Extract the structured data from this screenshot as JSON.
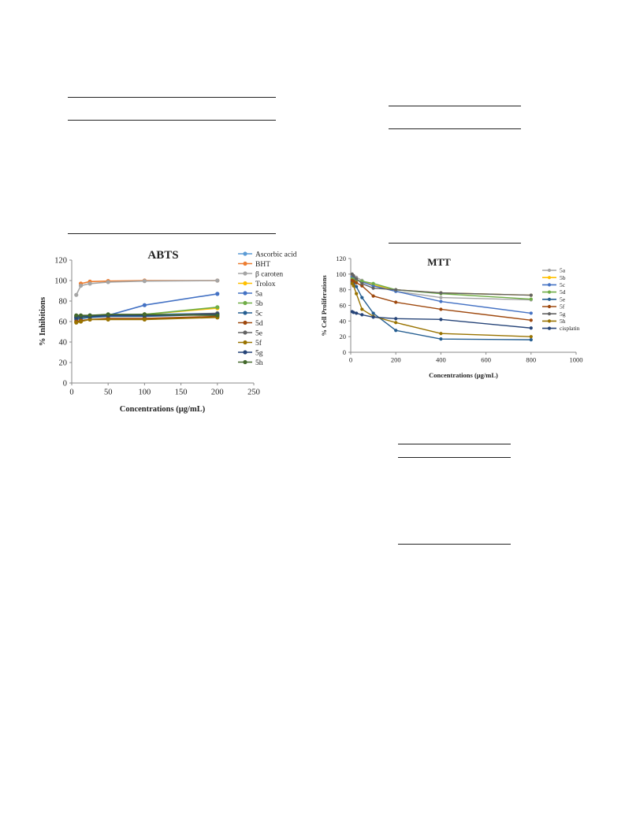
{
  "chart_data": [
    {
      "type": "line",
      "title": "ABTS",
      "xlabel": "Concentrations (µg/mL)",
      "ylabel": "% Inhibitions",
      "xlim": [
        0,
        250
      ],
      "ylim": [
        0,
        120
      ],
      "xticks": [
        0,
        50,
        100,
        150,
        200,
        250
      ],
      "yticks": [
        0,
        20,
        40,
        60,
        80,
        100,
        120
      ],
      "grid": false,
      "legend": "right",
      "x": [
        6.25,
        12.5,
        25,
        50,
        100,
        200
      ],
      "series": [
        {
          "name": "Ascorbic acid",
          "color": "#5b9bd5",
          "values": [
            65,
            65,
            66,
            66,
            67,
            68
          ]
        },
        {
          "name": "BHT",
          "color": "#ed7d31",
          "values": [
            null,
            97,
            99,
            99.5,
            100,
            100
          ]
        },
        {
          "name": "β caroten",
          "color": "#a5a5a5",
          "values": [
            86,
            95,
            97,
            98.5,
            99.5,
            100
          ]
        },
        {
          "name": "Trolox",
          "color": "#ffc000",
          "values": [
            64,
            64,
            65,
            66,
            67,
            73
          ]
        },
        {
          "name": "5a",
          "color": "#4472c4",
          "values": [
            64,
            65,
            65,
            66,
            76,
            87
          ]
        },
        {
          "name": "5b",
          "color": "#70ad47",
          "values": [
            63,
            64,
            65,
            66,
            67,
            74
          ]
        },
        {
          "name": "5c",
          "color": "#255e91",
          "values": [
            62,
            63,
            64,
            65,
            65,
            67
          ]
        },
        {
          "name": "5d",
          "color": "#9e480e",
          "values": [
            60,
            61,
            62,
            63,
            63,
            65
          ]
        },
        {
          "name": "5e",
          "color": "#636363",
          "values": [
            65,
            65,
            66,
            66,
            66,
            68
          ]
        },
        {
          "name": "5f",
          "color": "#997300",
          "values": [
            59,
            60,
            62,
            62,
            62,
            64
          ]
        },
        {
          "name": "5g",
          "color": "#264478",
          "values": [
            64,
            65,
            65,
            66,
            66,
            67
          ]
        },
        {
          "name": "5h",
          "color": "#43682b",
          "values": [
            66,
            66,
            66,
            67,
            67,
            66
          ]
        }
      ]
    },
    {
      "type": "line",
      "title": "MTT",
      "xlabel": "Concentrations (µg/mL)",
      "ylabel": "% Cell Proliferations",
      "xlim": [
        0,
        1000
      ],
      "ylim": [
        0,
        120
      ],
      "xticks": [
        0,
        200,
        400,
        600,
        800,
        1000
      ],
      "yticks": [
        0,
        20,
        40,
        60,
        80,
        100,
        120
      ],
      "grid": false,
      "legend": "right",
      "x": [
        6.25,
        12.5,
        25,
        50,
        100,
        200,
        400,
        800
      ],
      "series": [
        {
          "name": "5a",
          "color": "#a5a5a5",
          "values": [
            100,
            98,
            96,
            92,
            85,
            78,
            70,
            67
          ]
        },
        {
          "name": "5b",
          "color": "#ffc000",
          "values": [
            95,
            94,
            93,
            90,
            86,
            80,
            76,
            73
          ]
        },
        {
          "name": "5c",
          "color": "#4472c4",
          "values": [
            96,
            95,
            93,
            90,
            85,
            78,
            65,
            50
          ]
        },
        {
          "name": "5d",
          "color": "#70ad47",
          "values": [
            94,
            93,
            92,
            91,
            88,
            80,
            75,
            68
          ]
        },
        {
          "name": "5e",
          "color": "#255e91",
          "values": [
            90,
            88,
            84,
            70,
            50,
            28,
            17,
            16
          ]
        },
        {
          "name": "5f",
          "color": "#9e480e",
          "values": [
            92,
            91,
            89,
            85,
            72,
            64,
            55,
            41
          ]
        },
        {
          "name": "5g",
          "color": "#636363",
          "values": [
            100,
            98,
            94,
            88,
            82,
            80,
            76,
            73
          ]
        },
        {
          "name": "5h",
          "color": "#997300",
          "values": [
            88,
            85,
            75,
            55,
            46,
            38,
            24,
            20
          ]
        },
        {
          "name": "cisplatin",
          "color": "#264478",
          "values": [
            52,
            51,
            50,
            48,
            45,
            43,
            42,
            31
          ]
        }
      ]
    }
  ]
}
